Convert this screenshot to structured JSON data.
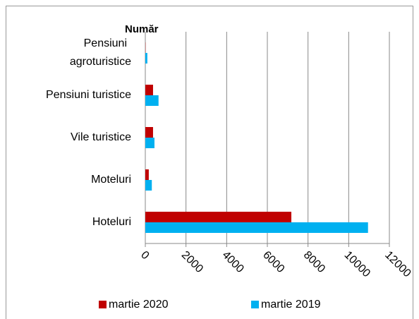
{
  "chart_data": {
    "type": "hbar",
    "title": "Număr",
    "categories": [
      "Hoteluri",
      "Moteluri",
      "Vile turistice",
      "Pensiuni turistice",
      "Pensiuni agroturistice"
    ],
    "series": [
      {
        "name": "martie 2020",
        "color": "#c00000",
        "values": [
          7180,
          170,
          380,
          380,
          10
        ]
      },
      {
        "name": "martie 2019",
        "color": "#00b0f0",
        "values": [
          10950,
          320,
          450,
          650,
          100
        ]
      }
    ],
    "xlim": [
      0,
      12000
    ],
    "xticks": [
      0,
      2000,
      4000,
      6000,
      8000,
      10000,
      12000
    ],
    "grid": true,
    "legend": "bottom"
  }
}
